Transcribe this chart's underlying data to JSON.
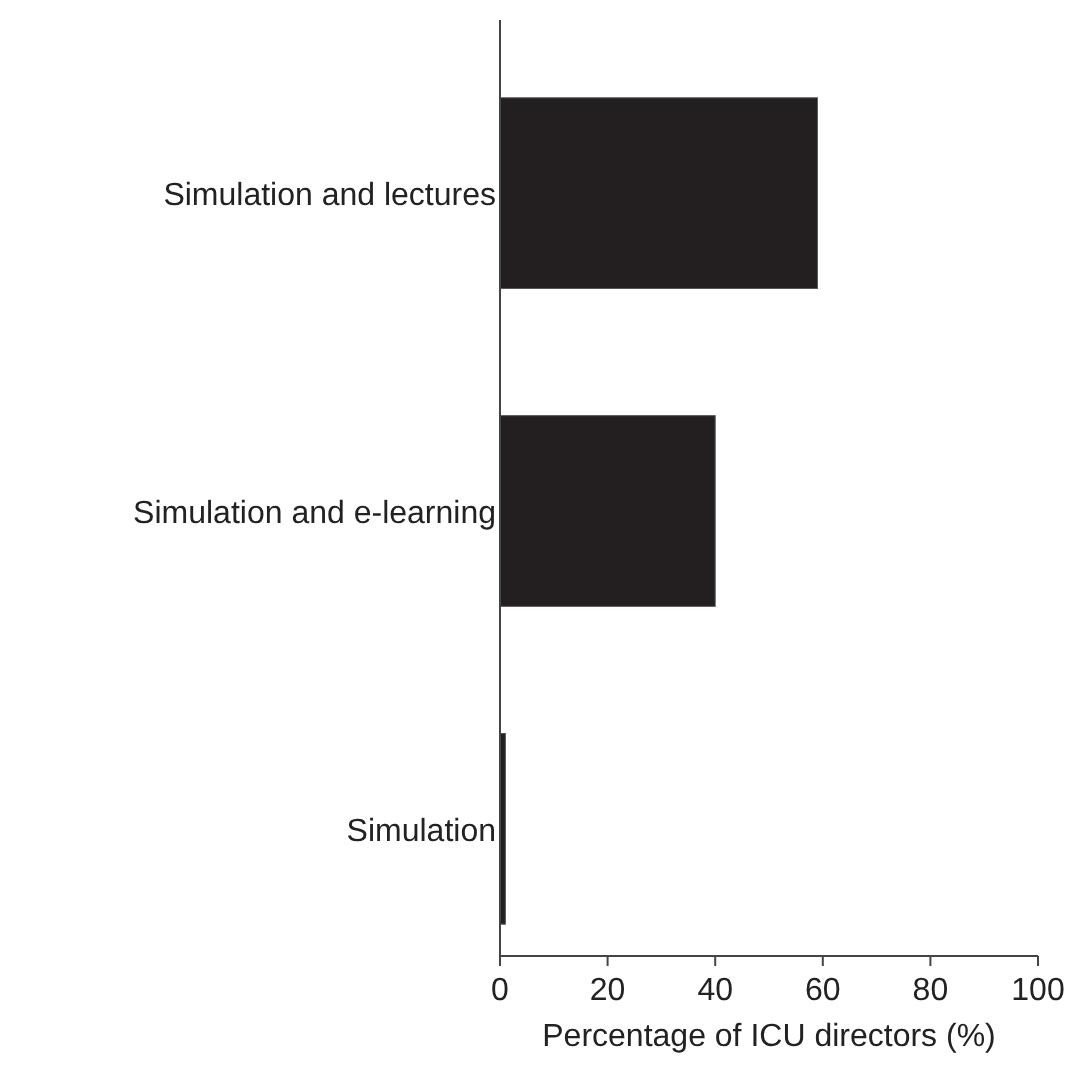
{
  "chart_data": {
    "type": "bar",
    "orientation": "horizontal",
    "xlabel": "Percentage of ICU directors (%)",
    "categories": [
      "Simulation and lectures",
      "Simulation and e-learning",
      "Simulation"
    ],
    "values": [
      59,
      40,
      1
    ],
    "color": "#231f20",
    "xlim": [
      0,
      100
    ],
    "xticks": [
      0,
      20,
      40,
      60,
      80,
      100
    ],
    "grid": false
  }
}
